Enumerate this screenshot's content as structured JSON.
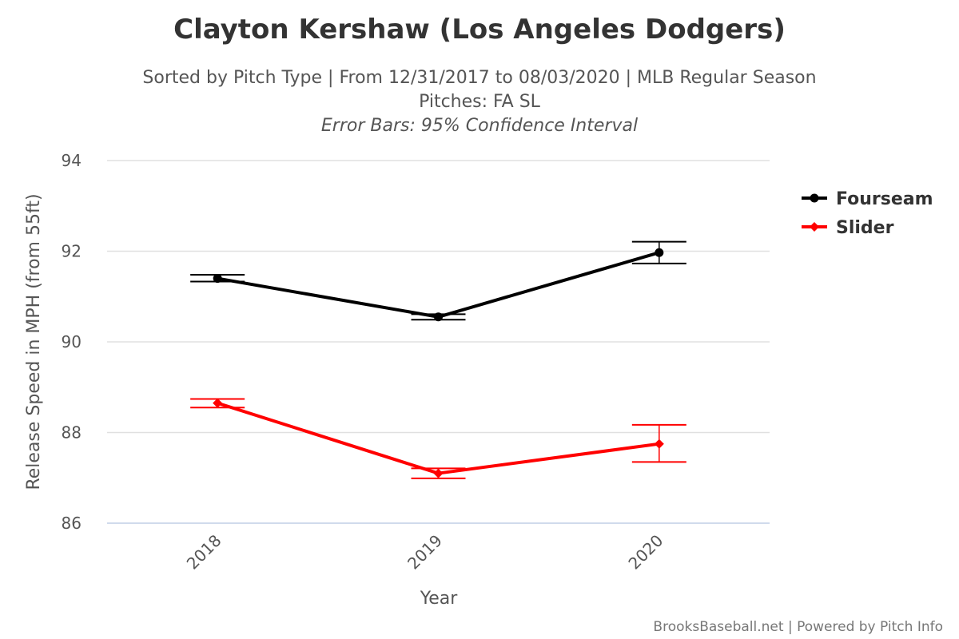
{
  "chart_data": {
    "type": "line",
    "title": "Clayton Kershaw (Los Angeles Dodgers)",
    "subtitle": "Sorted by Pitch Type | From 12/31/2017 to 08/03/2020 | MLB Regular Season",
    "pitches": "Pitches: FA SL",
    "error_bars_note": "Error Bars: 95% Confidence Interval",
    "xlabel": "Year",
    "ylabel": "Release Speed in MPH (from 55ft)",
    "categories": [
      "2018",
      "2019",
      "2020"
    ],
    "ylim": [
      86,
      94
    ],
    "yticks": [
      86,
      88,
      90,
      92,
      94
    ],
    "grid": true,
    "legend_position": "right",
    "series": [
      {
        "name": "Fourseam",
        "color": "#000000",
        "marker": "circle",
        "values": [
          91.4,
          90.55,
          91.97
        ],
        "error_low": [
          91.33,
          90.49,
          91.73
        ],
        "error_high": [
          91.48,
          90.61,
          92.21
        ]
      },
      {
        "name": "Slider",
        "color": "#ff0000",
        "marker": "diamond",
        "values": [
          88.65,
          87.1,
          87.75
        ],
        "error_low": [
          88.55,
          86.99,
          87.35
        ],
        "error_high": [
          88.74,
          87.21,
          88.17
        ]
      }
    ]
  },
  "credits": "BrooksBaseball.net | Powered by Pitch Info"
}
